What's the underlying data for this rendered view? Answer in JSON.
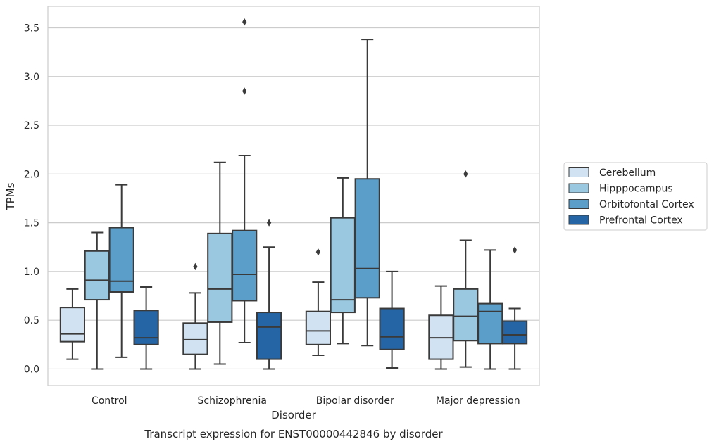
{
  "chart_data": {
    "type": "box",
    "title": "",
    "caption": "Transcript expression for ENST00000442846 by disorder",
    "xlabel": "Disorder",
    "ylabel": "TPMs",
    "ylim": [
      -0.17,
      3.72
    ],
    "yticks": [
      "0.0",
      "0.5",
      "1.0",
      "1.5",
      "2.0",
      "2.5",
      "3.0",
      "3.5"
    ],
    "ytick_values": [
      0,
      0.5,
      1,
      1.5,
      2,
      2.5,
      3,
      3.5
    ],
    "grid": "horizontal",
    "legend_position": "right",
    "categories": [
      "Control",
      "Schizophrenia",
      "Bipolar disorder",
      "Major depression"
    ],
    "series": [
      {
        "name": "Cerebellum",
        "color": "#d1e2f2",
        "boxes": [
          {
            "whisker_low": 0.1,
            "q1": 0.28,
            "median": 0.36,
            "q3": 0.63,
            "whisker_high": 0.82,
            "outliers": []
          },
          {
            "whisker_low": 0.0,
            "q1": 0.15,
            "median": 0.3,
            "q3": 0.47,
            "whisker_high": 0.78,
            "outliers": [
              1.05
            ]
          },
          {
            "whisker_low": 0.14,
            "q1": 0.25,
            "median": 0.39,
            "q3": 0.59,
            "whisker_high": 0.89,
            "outliers": [
              1.2
            ]
          },
          {
            "whisker_low": 0.0,
            "q1": 0.1,
            "median": 0.32,
            "q3": 0.55,
            "whisker_high": 0.85,
            "outliers": []
          }
        ]
      },
      {
        "name": "Hipppocampus",
        "color": "#9ac8e0",
        "boxes": [
          {
            "whisker_low": 0.0,
            "q1": 0.71,
            "median": 0.91,
            "q3": 1.21,
            "whisker_high": 1.4,
            "outliers": []
          },
          {
            "whisker_low": 0.05,
            "q1": 0.48,
            "median": 0.82,
            "q3": 1.39,
            "whisker_high": 2.12,
            "outliers": []
          },
          {
            "whisker_low": 0.26,
            "q1": 0.58,
            "median": 0.71,
            "q3": 1.55,
            "whisker_high": 1.96,
            "outliers": []
          },
          {
            "whisker_low": 0.02,
            "q1": 0.29,
            "median": 0.54,
            "q3": 0.82,
            "whisker_high": 1.32,
            "outliers": [
              2.0
            ]
          }
        ]
      },
      {
        "name": "Orbitofontal Cortex",
        "color": "#5a9ec9",
        "boxes": [
          {
            "whisker_low": 0.12,
            "q1": 0.79,
            "median": 0.9,
            "q3": 1.45,
            "whisker_high": 1.89,
            "outliers": []
          },
          {
            "whisker_low": 0.27,
            "q1": 0.7,
            "median": 0.97,
            "q3": 1.42,
            "whisker_high": 2.19,
            "outliers": [
              2.85,
              3.56
            ]
          },
          {
            "whisker_low": 0.24,
            "q1": 0.73,
            "median": 1.03,
            "q3": 1.95,
            "whisker_high": 3.38,
            "outliers": []
          },
          {
            "whisker_low": 0.0,
            "q1": 0.26,
            "median": 0.59,
            "q3": 0.67,
            "whisker_high": 1.22,
            "outliers": []
          }
        ]
      },
      {
        "name": "Prefrontal Cortex",
        "color": "#2565a6",
        "boxes": [
          {
            "whisker_low": 0.0,
            "q1": 0.25,
            "median": 0.32,
            "q3": 0.6,
            "whisker_high": 0.84,
            "outliers": []
          },
          {
            "whisker_low": 0.0,
            "q1": 0.1,
            "median": 0.43,
            "q3": 0.58,
            "whisker_high": 1.25,
            "outliers": [
              1.5
            ]
          },
          {
            "whisker_low": 0.01,
            "q1": 0.2,
            "median": 0.33,
            "q3": 0.62,
            "whisker_high": 1.0,
            "outliers": []
          },
          {
            "whisker_low": 0.0,
            "q1": 0.26,
            "median": 0.35,
            "q3": 0.49,
            "whisker_high": 0.62,
            "outliers": [
              1.22
            ]
          }
        ]
      }
    ],
    "colors": {
      "grid": "#cccccc",
      "frame": "#cccccc",
      "edge": "#3a3a3a",
      "text": "#262626"
    }
  }
}
